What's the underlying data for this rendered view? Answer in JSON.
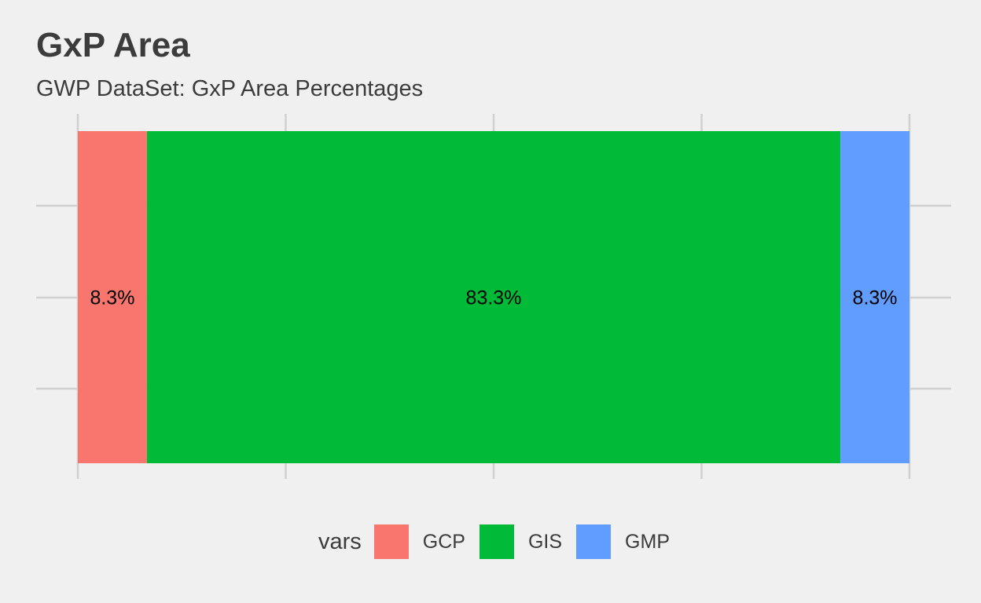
{
  "chart_data": {
    "type": "bar",
    "orientation": "horizontal-stacked",
    "title": "GxP Area",
    "subtitle": "GWP DataSet: GxP Area Percentages",
    "categories": [
      "GCP",
      "GIS",
      "GMP"
    ],
    "values": [
      8.3,
      83.3,
      8.3
    ],
    "labels": [
      "8.3%",
      "83.3%",
      "8.3%"
    ],
    "colors": [
      "#f8766d",
      "#00ba38",
      "#619cff"
    ],
    "legend": {
      "title": "vars",
      "placement": "bottom",
      "items": [
        "GCP",
        "GIS",
        "GMP"
      ]
    },
    "xlim": [
      0,
      100
    ],
    "grid": true,
    "xlabel": "",
    "ylabel": ""
  }
}
